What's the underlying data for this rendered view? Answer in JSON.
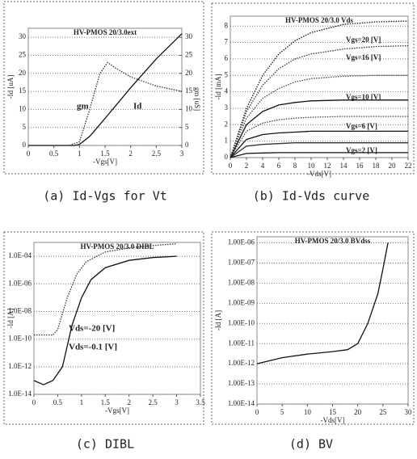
{
  "chart_data": [
    {
      "type": "line",
      "title": "HV-PMOS 20/3.0ext",
      "caption": "(a) Id-Vgs for Vt",
      "xlabel": "-Vgs[V]",
      "ylabel": "-Id [uA]",
      "y2label": "gm [uS]",
      "xlim": [
        0,
        3
      ],
      "xticks": [
        0,
        0.5,
        1,
        1.5,
        2,
        2.5,
        3
      ],
      "ylim": [
        0,
        32.5
      ],
      "yticks": [
        0,
        5,
        10,
        15,
        20,
        25,
        30
      ],
      "y2lim": [
        0,
        32.5
      ],
      "y2ticks": [
        0,
        5,
        10,
        15,
        20,
        25,
        30
      ],
      "log_y": false,
      "grid": true,
      "annotations": [
        "gm",
        "Id"
      ],
      "series": [
        {
          "color": "#111",
          "dash": false,
          "x": [
            0,
            0.5,
            0.9,
            1.0,
            1.2,
            1.5,
            2.0,
            2.5,
            3.0
          ],
          "values": [
            0,
            0,
            0,
            0.3,
            2.5,
            7.5,
            16,
            24,
            31
          ]
        },
        {
          "color": "#333",
          "dash": true,
          "axis": "y2",
          "x": [
            0,
            0.8,
            1.0,
            1.2,
            1.4,
            1.55,
            1.7,
            2.0,
            2.5,
            3.0
          ],
          "values": [
            0,
            0,
            1,
            10,
            20,
            23,
            21.5,
            19,
            16.5,
            15
          ]
        }
      ]
    },
    {
      "type": "line",
      "title": "HV-PMOS 20/3.0 Vds",
      "caption": "(b) Id-Vds curve",
      "xlabel": "-Vds[V]",
      "ylabel": "-Id [mA]",
      "xlim": [
        0,
        22
      ],
      "xticks": [
        0,
        2,
        4,
        6,
        8,
        10,
        12,
        14,
        16,
        18,
        20,
        22
      ],
      "ylim": [
        0,
        8.6
      ],
      "yticks": [
        0,
        1,
        2,
        3,
        4,
        5,
        6,
        7,
        8
      ],
      "log_y": false,
      "grid": true,
      "annotations": [],
      "series": [
        {
          "name": "Vgs=20 [V]",
          "color": "#111",
          "dash": true,
          "x": [
            0,
            2,
            4,
            6,
            8,
            10,
            14,
            18,
            22
          ],
          "values": [
            0,
            3.0,
            5.0,
            6.3,
            7.1,
            7.6,
            8.1,
            8.25,
            8.3
          ]
        },
        {
          "name": "Vgs=16 [V]",
          "color": "#333",
          "dash": true,
          "x": [
            0,
            2,
            4,
            6,
            8,
            10,
            14,
            18,
            22
          ],
          "values": [
            0,
            2.8,
            4.4,
            5.4,
            6.0,
            6.3,
            6.6,
            6.75,
            6.8
          ]
        },
        {
          "color": "#444",
          "dash": true,
          "x": [
            0,
            2,
            4,
            6,
            8,
            10,
            14,
            18,
            22
          ],
          "values": [
            0,
            2.4,
            3.6,
            4.2,
            4.6,
            4.8,
            4.95,
            5.0,
            5.0
          ]
        },
        {
          "name": "Vgs=10 [V]",
          "color": "#111",
          "dash": false,
          "x": [
            0,
            2,
            4,
            6,
            8,
            10,
            14,
            18,
            22
          ],
          "values": [
            0,
            2.0,
            2.8,
            3.2,
            3.35,
            3.45,
            3.5,
            3.5,
            3.5
          ]
        },
        {
          "color": "#444",
          "dash": true,
          "x": [
            0,
            2,
            4,
            6,
            8,
            10,
            14,
            18,
            22
          ],
          "values": [
            0,
            1.6,
            2.1,
            2.3,
            2.4,
            2.45,
            2.5,
            2.5,
            2.5
          ]
        },
        {
          "name": "Vgs=6 [V]",
          "color": "#111",
          "dash": false,
          "x": [
            0,
            2,
            4,
            6,
            8,
            10,
            14,
            18,
            22
          ],
          "values": [
            0,
            1.1,
            1.4,
            1.5,
            1.55,
            1.6,
            1.6,
            1.6,
            1.6
          ]
        },
        {
          "color": "#333",
          "dash": false,
          "x": [
            0,
            2,
            4,
            6,
            8,
            10,
            14,
            18,
            22
          ],
          "values": [
            0,
            0.7,
            0.8,
            0.85,
            0.9,
            0.9,
            0.9,
            0.9,
            0.9
          ]
        },
        {
          "name": "Vgs=2 [V]",
          "color": "#111",
          "dash": false,
          "x": [
            0,
            2,
            4,
            6,
            8,
            10,
            14,
            18,
            22
          ],
          "values": [
            0,
            0.25,
            0.28,
            0.3,
            0.3,
            0.3,
            0.3,
            0.3,
            0.3
          ]
        }
      ]
    },
    {
      "type": "line",
      "title": "HV-PMOS 20/3.0 DIBL",
      "caption": "(c) DIBL",
      "xlabel": "-Vgs[V]",
      "ylabel": "-Id [A]",
      "xlim": [
        0,
        3.5
      ],
      "xticks": [
        0,
        0.5,
        1,
        1.5,
        2,
        2.5,
        3,
        3.5
      ],
      "ylim": [
        1e-14,
        0.001
      ],
      "log_y": true,
      "grid": true,
      "yticks": [
        {
          "value": 1e-14,
          "label": "1.0E-14"
        },
        {
          "value": 1e-12,
          "label": "1.0E-12"
        },
        {
          "value": 1e-10,
          "label": "1.0E-10"
        },
        {
          "value": 1e-08,
          "label": "1.0E-08"
        },
        {
          "value": 1e-06,
          "label": "1.0E-06"
        },
        {
          "value": 0.0001,
          "label": "1.0E-04"
        }
      ],
      "annotations": [
        "Vds=-20 [V]",
        "Vds=-0.1 [V]"
      ],
      "series": [
        {
          "color": "#333",
          "dash": true,
          "x": [
            0,
            0.4,
            0.5,
            0.7,
            0.9,
            1.1,
            1.5,
            2,
            2.5,
            3
          ],
          "values": [
            2e-10,
            2e-10,
            5e-10,
            1e-07,
            5e-06,
            4e-05,
            0.0002,
            0.0004,
            0.0006,
            0.0008
          ]
        },
        {
          "color": "#111",
          "dash": false,
          "x": [
            0,
            0.2,
            0.4,
            0.6,
            0.8,
            1,
            1.2,
            1.5,
            2,
            2.5,
            3
          ],
          "values": [
            1e-13,
            5e-14,
            1e-13,
            1e-12,
            1e-09,
            1e-07,
            2e-06,
            1.5e-05,
            5e-05,
            8e-05,
            0.0001
          ]
        }
      ]
    },
    {
      "type": "line",
      "title": "HV-PMOS 20/3.0 BVdss",
      "caption": "(d) BV",
      "xlabel": "-Vds[V]",
      "ylabel": "-Id [A]",
      "xlim": [
        0,
        30
      ],
      "xticks": [
        0,
        5,
        10,
        15,
        20,
        25,
        30
      ],
      "ylim": [
        1e-14,
        2e-06
      ],
      "log_y": true,
      "grid": true,
      "yticks": [
        {
          "value": 1e-14,
          "label": "1.00E-14"
        },
        {
          "value": 1e-13,
          "label": "1.00E-13"
        },
        {
          "value": 1e-12,
          "label": "1.00E-12"
        },
        {
          "value": 1e-11,
          "label": "1.00E-11"
        },
        {
          "value": 1e-10,
          "label": "1.00E-10"
        },
        {
          "value": 1e-09,
          "label": "1.00E-09"
        },
        {
          "value": 1e-08,
          "label": "1.00E-08"
        },
        {
          "value": 1e-07,
          "label": "1.00E-07"
        },
        {
          "value": 1e-06,
          "label": "1.00E-06"
        }
      ],
      "annotations": [],
      "series": [
        {
          "color": "#111",
          "dash": false,
          "x": [
            0,
            5,
            10,
            15,
            18,
            20,
            22,
            24,
            25,
            26
          ],
          "values": [
            1e-12,
            2e-12,
            3e-12,
            4e-12,
            5e-12,
            1e-11,
            1e-10,
            3e-09,
            5e-08,
            1e-06
          ]
        }
      ]
    }
  ]
}
